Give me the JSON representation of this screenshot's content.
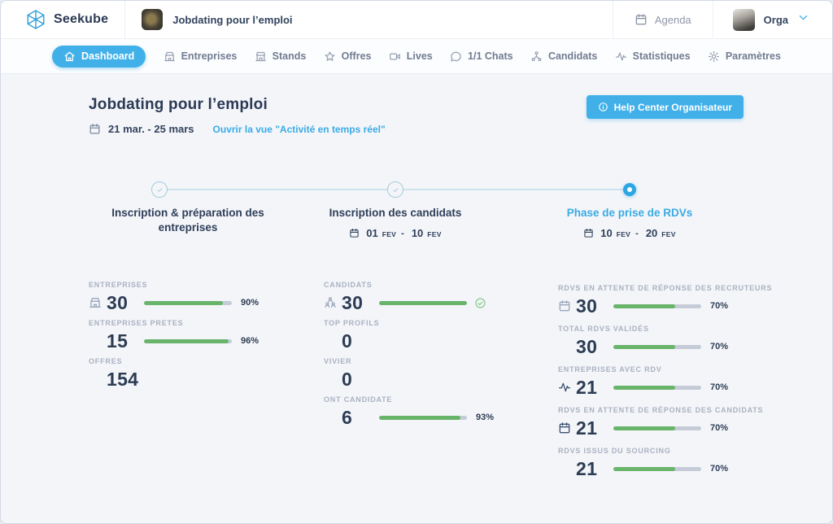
{
  "header": {
    "brand": "Seekube",
    "event_title": "Jobdating pour l’emploi",
    "agenda_label": "Agenda",
    "user_label": "Orga"
  },
  "nav": {
    "items": [
      {
        "label": "Dashboard",
        "icon": "home-icon",
        "active": true
      },
      {
        "label": "Entreprises",
        "icon": "enterprise-icon",
        "active": false
      },
      {
        "label": "Stands",
        "icon": "stand-icon",
        "active": false
      },
      {
        "label": "Offres",
        "icon": "star-icon",
        "active": false
      },
      {
        "label": "Lives",
        "icon": "video-icon",
        "active": false
      },
      {
        "label": "1/1 Chats",
        "icon": "chat-icon",
        "active": false
      },
      {
        "label": "Candidats",
        "icon": "candidates-icon",
        "active": false
      },
      {
        "label": "Statistiques",
        "icon": "stats-icon",
        "active": false
      },
      {
        "label": "Paramètres",
        "icon": "gear-icon",
        "active": false
      }
    ]
  },
  "main": {
    "title": "Jobdating pour l’emploi",
    "date_range": "21 mar. - 25 mars",
    "realtime_link": "Ouvrir la vue \"Activité en temps réel\"",
    "help_button": "Help Center Organisateur"
  },
  "stepper": {
    "steps": [
      {
        "label": "Inscription & préparation des entreprises",
        "state": "done"
      },
      {
        "label": "Inscription des candidats",
        "state": "done",
        "date": {
          "start_day": "01",
          "start_month": "FEV",
          "sep": "-",
          "end_day": "10",
          "end_month": "FEV"
        }
      },
      {
        "label": "Phase de prise de RDVs",
        "state": "active",
        "date": {
          "start_day": "10",
          "start_month": "FEV",
          "sep": "-",
          "end_day": "20",
          "end_month": "FEV"
        }
      }
    ]
  },
  "stats": {
    "columns": [
      {
        "name": "entreprises",
        "items": [
          {
            "label": "ENTREPRISES",
            "value": "30",
            "icon": "building-icon",
            "progress": 90,
            "percent": "90%"
          },
          {
            "label": "ENTREPRISES PRETES",
            "value": "15",
            "progress": 96,
            "percent": "96%"
          },
          {
            "label": "OFFRES",
            "value": "154"
          }
        ]
      },
      {
        "name": "candidats",
        "items": [
          {
            "label": "CANDIDATS",
            "value": "30",
            "icon": "people-icon",
            "progress": 100,
            "complete_icon": "check-circle-icon"
          },
          {
            "label": "TOP PROFILS",
            "value": "0"
          },
          {
            "label": "VIVIER",
            "value": "0"
          },
          {
            "label": "ONT CANDIDATE",
            "value": "6",
            "progress": 93,
            "percent": "93%"
          }
        ]
      },
      {
        "name": "rdvs",
        "items": [
          {
            "label": "RDVS EN ATTENTE DE RÉPONSE DES RECRUTEURS",
            "value": "30",
            "icon": "calendar-icon",
            "progress": 70,
            "percent": "70%"
          },
          {
            "label": "TOTAL RDVS VALIDÉS",
            "value": "30",
            "progress": 70,
            "percent": "70%"
          },
          {
            "label": "ENTREPRISES AVEC RDV",
            "value": "21",
            "icon": "pulse-icon",
            "icon_style": "dark",
            "progress": 70,
            "percent": "70%"
          },
          {
            "label": "RDVS EN ATTENTE DE RÉPONSE DES CANDIDATS",
            "value": "21",
            "icon": "calendar-icon",
            "icon_style": "dark",
            "progress": 70,
            "percent": "70%"
          },
          {
            "label": "RDVS ISSUS DU SOURCING",
            "value": "21",
            "progress": 70,
            "percent": "70%"
          }
        ]
      }
    ]
  },
  "colors": {
    "accent_blue": "#41b0e8",
    "navy_text": "#2c3c54",
    "progress_green": "#68b46a",
    "track_gray": "#c5ccd8",
    "label_gray": "#a9b1c1"
  }
}
